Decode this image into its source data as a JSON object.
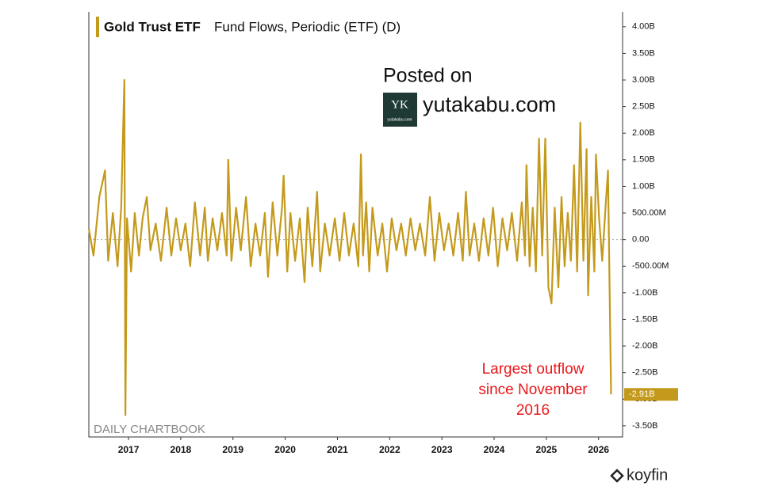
{
  "chart_data": {
    "type": "line",
    "title": "Fund Flows, Periodic (ETF) (D)",
    "x": [
      2016.24,
      2016.33,
      2016.44,
      2016.55,
      2016.61,
      2016.7,
      2016.79,
      2016.86,
      2016.92,
      2016.94,
      2016.97,
      2017.05,
      2017.12,
      2017.2,
      2017.27,
      2017.35,
      2017.42,
      2017.52,
      2017.62,
      2017.73,
      2017.82,
      2017.91,
      2018.0,
      2018.09,
      2018.18,
      2018.27,
      2018.37,
      2018.46,
      2018.52,
      2018.61,
      2018.7,
      2018.79,
      2018.88,
      2018.91,
      2018.97,
      2019.06,
      2019.15,
      2019.25,
      2019.34,
      2019.43,
      2019.52,
      2019.61,
      2019.67,
      2019.76,
      2019.85,
      2019.94,
      2019.97,
      2020.04,
      2020.1,
      2020.19,
      2020.28,
      2020.37,
      2020.43,
      2020.52,
      2020.61,
      2020.67,
      2020.76,
      2020.85,
      2020.95,
      2021.04,
      2021.13,
      2021.22,
      2021.31,
      2021.4,
      2021.45,
      2021.49,
      2021.55,
      2021.61,
      2021.67,
      2021.77,
      2021.86,
      2021.95,
      2022.04,
      2022.13,
      2022.22,
      2022.31,
      2022.4,
      2022.49,
      2022.58,
      2022.68,
      2022.77,
      2022.86,
      2022.95,
      2023.04,
      2023.13,
      2023.22,
      2023.31,
      2023.4,
      2023.46,
      2023.53,
      2023.62,
      2023.71,
      2023.8,
      2023.89,
      2023.98,
      2024.07,
      2024.16,
      2024.25,
      2024.34,
      2024.44,
      2024.53,
      2024.59,
      2024.62,
      2024.68,
      2024.74,
      2024.8,
      2024.86,
      2024.92,
      2024.98,
      2025.04,
      2025.1,
      2025.16,
      2025.23,
      2025.29,
      2025.35,
      2025.41,
      2025.47,
      2025.53,
      2025.59,
      2025.65,
      2025.71,
      2025.77,
      2025.8,
      2025.86,
      2025.92,
      2025.95,
      2026.01,
      2026.07,
      2026.14,
      2026.18,
      2026.21,
      2026.24
    ],
    "series": [
      {
        "name": "Gold Trust ETF",
        "color": "#c49a1c",
        "values": [
          0.2,
          -0.3,
          0.8,
          1.3,
          -0.4,
          0.5,
          -0.5,
          0.6,
          3.0,
          -3.3,
          0.4,
          -0.6,
          0.5,
          -0.3,
          0.4,
          0.8,
          -0.2,
          0.3,
          -0.4,
          0.6,
          -0.3,
          0.4,
          -0.2,
          0.3,
          -0.5,
          0.7,
          -0.3,
          0.6,
          -0.4,
          0.4,
          -0.2,
          0.5,
          -0.3,
          1.5,
          -0.4,
          0.6,
          -0.2,
          0.8,
          -0.5,
          0.3,
          -0.3,
          0.5,
          -0.7,
          0.7,
          -0.3,
          0.6,
          1.2,
          -0.6,
          0.5,
          -0.4,
          0.4,
          -0.8,
          0.6,
          -0.5,
          0.9,
          -0.6,
          0.3,
          -0.3,
          0.4,
          -0.4,
          0.5,
          -0.3,
          0.3,
          -0.5,
          1.6,
          -0.3,
          0.7,
          -0.6,
          0.6,
          -0.3,
          0.3,
          -0.6,
          0.4,
          -0.2,
          0.3,
          -0.3,
          0.4,
          -0.2,
          0.3,
          -0.3,
          0.8,
          -0.4,
          0.5,
          -0.2,
          0.3,
          -0.3,
          0.5,
          -0.4,
          0.9,
          -0.3,
          0.3,
          -0.4,
          0.4,
          -0.3,
          0.6,
          -0.5,
          0.4,
          -0.2,
          0.5,
          -0.4,
          0.7,
          -0.3,
          1.4,
          -0.5,
          0.6,
          -0.6,
          1.9,
          -0.3,
          1.9,
          -0.9,
          -1.2,
          0.6,
          -0.9,
          0.8,
          -0.5,
          0.5,
          -0.4,
          1.4,
          -0.6,
          2.2,
          -0.4,
          1.7,
          -1.05,
          0.8,
          -0.6,
          1.6,
          0.4,
          -0.4,
          0.7,
          1.3,
          -0.8,
          -2.91
        ]
      }
    ],
    "current_value": {
      "value": -2.91,
      "label": "-2.91B"
    },
    "xlim": [
      2016.24,
      2026.46
    ],
    "xticks": [
      2017,
      2018,
      2019,
      2020,
      2021,
      2022,
      2023,
      2024,
      2025,
      2026
    ],
    "ylim": [
      -3.71,
      4.28
    ],
    "yticks": [
      {
        "value": 4,
        "label": "4.00B"
      },
      {
        "value": 3.5,
        "label": "3.50B"
      },
      {
        "value": 3,
        "label": "3.00B"
      },
      {
        "value": 2.5,
        "label": "2.50B"
      },
      {
        "value": 2,
        "label": "2.00B"
      },
      {
        "value": 1.5,
        "label": "1.50B"
      },
      {
        "value": 1,
        "label": "1.00B"
      },
      {
        "value": 0.5,
        "label": "500.00M"
      },
      {
        "value": 0,
        "label": "0.00"
      },
      {
        "value": -0.5,
        "label": "-500.00M"
      },
      {
        "value": -1,
        "label": "-1.00B"
      },
      {
        "value": -1.5,
        "label": "-1.50B"
      },
      {
        "value": -2,
        "label": "-2.00B"
      },
      {
        "value": -2.5,
        "label": "-2.50B"
      },
      {
        "value": -3,
        "label": "-3.00B"
      },
      {
        "value": -3.5,
        "label": "-3.50B"
      }
    ],
    "annotation": [
      "Largest outflow",
      "since November",
      "2016"
    ],
    "watermark": {
      "posted": "Posted on",
      "site": "yutakabu.com",
      "logo_mark": "YK",
      "logo_text": "yutakabu.com"
    },
    "source": "DAILY CHARTBOOK",
    "brand": "koyfin"
  }
}
